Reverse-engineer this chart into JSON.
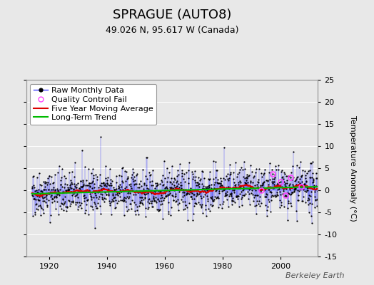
{
  "title": "SPRAGUE (AUTO8)",
  "subtitle": "49.026 N, 95.617 W (Canada)",
  "ylabel": "Temperature Anomaly (°C)",
  "watermark": "Berkeley Earth",
  "xlim": [
    1912,
    2013
  ],
  "ylim": [
    -15,
    25
  ],
  "yticks": [
    -15,
    -10,
    -5,
    0,
    5,
    10,
    15,
    20,
    25
  ],
  "xticks": [
    1920,
    1940,
    1960,
    1980,
    2000
  ],
  "bg_color": "#e8e8e8",
  "plot_bg_color": "#e8e8e8",
  "raw_color": "#4444ff",
  "raw_dot_color": "#000000",
  "qc_color": "#ff44ff",
  "moving_avg_color": "#dd0000",
  "trend_color": "#00bb00",
  "seed": 42,
  "years_start": 1914,
  "years_end": 2012,
  "noise_std": 2.5,
  "n_qc": 6,
  "title_fontsize": 13,
  "subtitle_fontsize": 9,
  "ylabel_fontsize": 8,
  "tick_fontsize": 8,
  "legend_fontsize": 8,
  "watermark_fontsize": 8
}
